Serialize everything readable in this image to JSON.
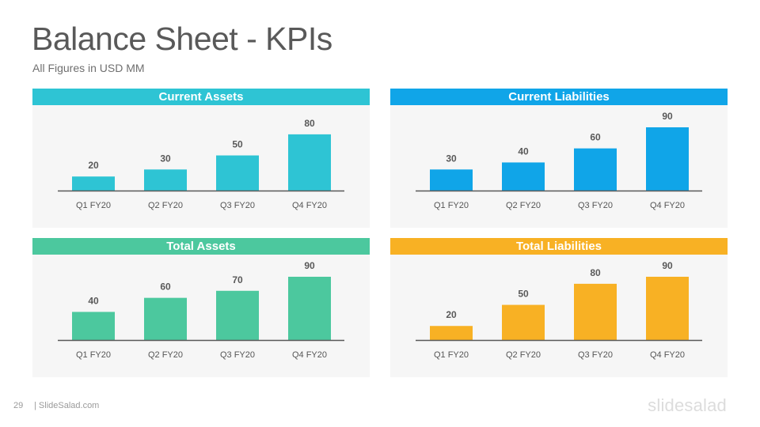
{
  "slide": {
    "title": "Balance Sheet - KPIs",
    "subtitle": "All Figures in USD MM",
    "page_number": "29",
    "site": "| SlideSalad.com",
    "brand": "slidesalad"
  },
  "colors": {
    "current_assets": "#2ec4d4",
    "current_liabilities": "#10a5e8",
    "total_assets": "#4cc89e",
    "total_liabilities": "#f8b124"
  },
  "chart_data": [
    {
      "type": "bar",
      "title": "Current Assets",
      "categories": [
        "Q1 FY20",
        "Q2 FY20",
        "Q3 FY20",
        "Q4 FY20"
      ],
      "values": [
        20,
        30,
        50,
        80
      ],
      "color": "#2ec4d4",
      "ylim": [
        0,
        90
      ],
      "grid": false
    },
    {
      "type": "bar",
      "title": "Current Liabilities",
      "categories": [
        "Q1 FY20",
        "Q2 FY20",
        "Q3 FY20",
        "Q4 FY20"
      ],
      "values": [
        30,
        40,
        60,
        90
      ],
      "color": "#10a5e8",
      "ylim": [
        0,
        90
      ],
      "grid": false
    },
    {
      "type": "bar",
      "title": "Total Assets",
      "categories": [
        "Q1 FY20",
        "Q2 FY20",
        "Q3 FY20",
        "Q4 FY20"
      ],
      "values": [
        40,
        60,
        70,
        90
      ],
      "color": "#4cc89e",
      "ylim": [
        0,
        90
      ],
      "grid": false
    },
    {
      "type": "bar",
      "title": "Total Liabilities",
      "categories": [
        "Q1 FY20",
        "Q2 FY20",
        "Q3 FY20",
        "Q4 FY20"
      ],
      "values": [
        20,
        50,
        80,
        90
      ],
      "color": "#f8b124",
      "ylim": [
        0,
        90
      ],
      "grid": false
    }
  ]
}
